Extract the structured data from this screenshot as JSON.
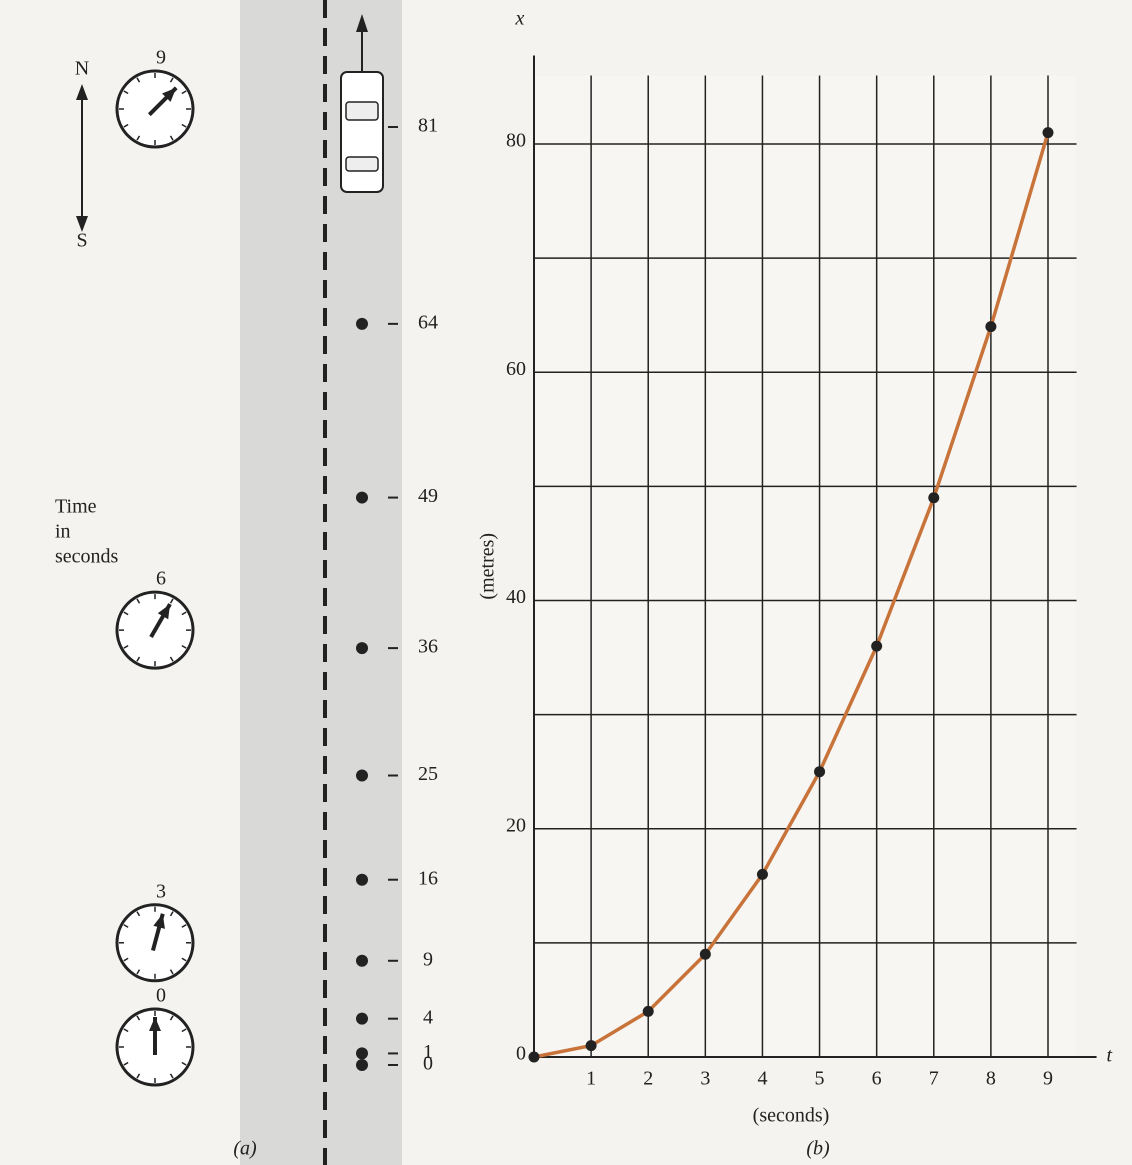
{
  "chart_data": [
    {
      "type": "strip",
      "values": [
        0,
        1,
        4,
        9,
        16,
        25,
        36,
        49,
        64,
        81
      ],
      "ylim": [
        0,
        81
      ],
      "clock_times": [
        0,
        3,
        6,
        9
      ],
      "time_label": [
        "Time",
        "in",
        "seconds"
      ],
      "compass": [
        "N",
        "S"
      ],
      "panel_label": "(a)"
    },
    {
      "type": "line",
      "yname": "x",
      "xname": "t",
      "ylabel": "(metres)",
      "xlabel": "(seconds)",
      "x": [
        0,
        1,
        2,
        3,
        4,
        5,
        6,
        7,
        8,
        9
      ],
      "series": [
        {
          "color": "#c8733a",
          "values": [
            0,
            1,
            4,
            9,
            16,
            25,
            36,
            49,
            64,
            81
          ]
        }
      ],
      "xlim": [
        0,
        9.5
      ],
      "ylim": [
        0,
        86
      ],
      "xticks": [
        1,
        2,
        3,
        4,
        5,
        6,
        7,
        8,
        9
      ],
      "yticks": [
        0,
        20,
        40,
        60,
        80
      ],
      "yminor": [
        10,
        30,
        50,
        70
      ],
      "panel_label": "(b)"
    }
  ]
}
